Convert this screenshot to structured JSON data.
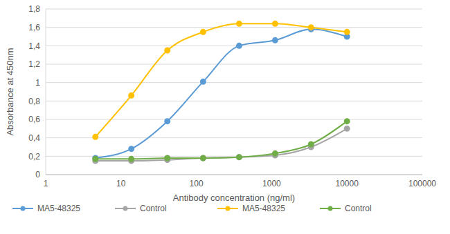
{
  "chart_data": {
    "type": "line",
    "x_label": "Antibody concentration (ng/ml)",
    "y_label": "Absorbance at 450nm",
    "x": [
      4.57,
      13.7,
      41.2,
      123,
      370,
      1111,
      3333,
      10000
    ],
    "series": [
      {
        "name": "MA5-48325",
        "color": "#5b9bd5",
        "values": [
          0.18,
          0.28,
          0.58,
          1.01,
          1.4,
          1.46,
          1.58,
          1.5
        ]
      },
      {
        "name": "Control",
        "color": "#a5a5a5",
        "values": [
          0.15,
          0.15,
          0.16,
          0.18,
          0.19,
          0.21,
          0.3,
          0.5
        ]
      },
      {
        "name": "MA5-48325",
        "color": "#ffc000",
        "values": [
          0.41,
          0.86,
          1.35,
          1.55,
          1.64,
          1.64,
          1.6,
          1.55
        ]
      },
      {
        "name": "Control",
        "color": "#70ad47",
        "values": [
          0.17,
          0.17,
          0.18,
          0.18,
          0.19,
          0.23,
          0.33,
          0.58
        ]
      }
    ],
    "log": "x",
    "xlim": [
      1,
      100000
    ],
    "xticks": [
      1,
      10,
      100,
      1000,
      10000,
      100000
    ],
    "ylim": [
      0,
      1.8
    ],
    "yticks": [
      0,
      {
        "value": 0.2,
        "label": "0,2"
      },
      {
        "value": 0.4,
        "label": "0,4"
      },
      {
        "value": 0.6,
        "label": "0,6"
      },
      {
        "value": 0.8,
        "label": "0,8"
      },
      1,
      {
        "value": 1.2,
        "label": "1,2"
      },
      {
        "value": 1.4,
        "label": "1,4"
      },
      {
        "value": 1.6,
        "label": "1,6"
      },
      {
        "value": 1.8,
        "label": "1,8"
      }
    ],
    "grid": true,
    "legend": "bottom",
    "marker": "circle"
  }
}
